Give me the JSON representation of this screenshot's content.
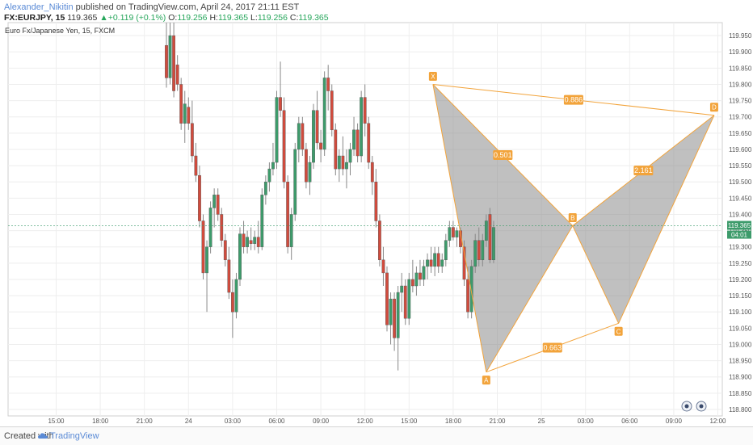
{
  "header": {
    "author": "Alexander_Nikitin",
    "published_text": " published on TradingView.com, April 24, 2017 21:11 EST",
    "symbol": "FX:EURJPY, 15",
    "last": "119.365",
    "change": "▲+0.119 (+0.1%)",
    "o_label": "O:",
    "o_value": "119.256",
    "h_label": "H:",
    "h_value": "119.365",
    "l_label": "L:",
    "l_value": "119.256",
    "c_label": "C:",
    "c_value": "119.365"
  },
  "chart_data": {
    "type": "candlestick",
    "title": "Euro Fx/Japanese Yen, 15, FXCM",
    "ylim": [
      118.78,
      119.99
    ],
    "y_ticks": [
      "118.800",
      "118.850",
      "118.900",
      "118.950",
      "119.000",
      "119.050",
      "119.100",
      "119.150",
      "119.200",
      "119.250",
      "119.300",
      "119.350",
      "119.400",
      "119.450",
      "119.500",
      "119.550",
      "119.600",
      "119.650",
      "119.700",
      "119.750",
      "119.800",
      "119.850",
      "119.900",
      "119.950"
    ],
    "x_tick_labels": [
      "15:00",
      "18:00",
      "21:00",
      "24",
      "03:00",
      "06:00",
      "09:00",
      "12:00",
      "15:00",
      "18:00",
      "21:00",
      "25",
      "03:00",
      "06:00",
      "09:00",
      "12:00"
    ],
    "x_tick_bar_index": [
      -30,
      -18,
      -6,
      6,
      18,
      30,
      42,
      54,
      66,
      78,
      90,
      102,
      114,
      126,
      138,
      150
    ],
    "price_label": "119.365",
    "time_label": "04:01",
    "colors": {
      "up": "#3d9b6b",
      "down": "#d14b3d",
      "pattern_line": "#f2a33a",
      "pattern_fill": "#8c8c8c",
      "label_bg": "#f2a33a"
    },
    "candles": [
      {
        "o": 119.92,
        "h": 119.99,
        "l": 119.79,
        "c": 119.82
      },
      {
        "o": 119.82,
        "h": 119.99,
        "l": 119.8,
        "c": 119.95
      },
      {
        "o": 119.95,
        "h": 119.99,
        "l": 119.76,
        "c": 119.78
      },
      {
        "o": 119.86,
        "h": 119.89,
        "l": 119.78,
        "c": 119.8
      },
      {
        "o": 119.8,
        "h": 119.82,
        "l": 119.66,
        "c": 119.68
      },
      {
        "o": 119.68,
        "h": 119.78,
        "l": 119.62,
        "c": 119.74
      },
      {
        "o": 119.73,
        "h": 119.76,
        "l": 119.66,
        "c": 119.68
      },
      {
        "o": 119.68,
        "h": 119.75,
        "l": 119.56,
        "c": 119.58
      },
      {
        "o": 119.58,
        "h": 119.62,
        "l": 119.5,
        "c": 119.52
      },
      {
        "o": 119.52,
        "h": 119.55,
        "l": 119.36,
        "c": 119.38
      },
      {
        "o": 119.38,
        "h": 119.4,
        "l": 119.2,
        "c": 119.22
      },
      {
        "o": 119.22,
        "h": 119.32,
        "l": 119.1,
        "c": 119.3
      },
      {
        "o": 119.3,
        "h": 119.44,
        "l": 119.28,
        "c": 119.42
      },
      {
        "o": 119.42,
        "h": 119.48,
        "l": 119.36,
        "c": 119.46
      },
      {
        "o": 119.46,
        "h": 119.48,
        "l": 119.38,
        "c": 119.4
      },
      {
        "o": 119.4,
        "h": 119.42,
        "l": 119.3,
        "c": 119.32
      },
      {
        "o": 119.32,
        "h": 119.34,
        "l": 119.24,
        "c": 119.26
      },
      {
        "o": 119.26,
        "h": 119.3,
        "l": 119.14,
        "c": 119.16
      },
      {
        "o": 119.16,
        "h": 119.2,
        "l": 119.02,
        "c": 119.1
      },
      {
        "o": 119.1,
        "h": 119.22,
        "l": 119.08,
        "c": 119.2
      },
      {
        "o": 119.2,
        "h": 119.36,
        "l": 119.18,
        "c": 119.34
      },
      {
        "o": 119.34,
        "h": 119.38,
        "l": 119.28,
        "c": 119.3
      },
      {
        "o": 119.3,
        "h": 119.35,
        "l": 119.28,
        "c": 119.33
      },
      {
        "o": 119.32,
        "h": 119.36,
        "l": 119.29,
        "c": 119.31
      },
      {
        "o": 119.31,
        "h": 119.35,
        "l": 119.29,
        "c": 119.33
      },
      {
        "o": 119.33,
        "h": 119.38,
        "l": 119.28,
        "c": 119.3
      },
      {
        "o": 119.3,
        "h": 119.48,
        "l": 119.29,
        "c": 119.46
      },
      {
        "o": 119.46,
        "h": 119.52,
        "l": 119.43,
        "c": 119.5
      },
      {
        "o": 119.5,
        "h": 119.56,
        "l": 119.47,
        "c": 119.54
      },
      {
        "o": 119.54,
        "h": 119.62,
        "l": 119.52,
        "c": 119.56
      },
      {
        "o": 119.56,
        "h": 119.78,
        "l": 119.54,
        "c": 119.76
      },
      {
        "o": 119.76,
        "h": 119.87,
        "l": 119.7,
        "c": 119.72
      },
      {
        "o": 119.72,
        "h": 119.76,
        "l": 119.48,
        "c": 119.5
      },
      {
        "o": 119.5,
        "h": 119.52,
        "l": 119.28,
        "c": 119.3
      },
      {
        "o": 119.3,
        "h": 119.42,
        "l": 119.26,
        "c": 119.4
      },
      {
        "o": 119.4,
        "h": 119.62,
        "l": 119.38,
        "c": 119.6
      },
      {
        "o": 119.6,
        "h": 119.7,
        "l": 119.56,
        "c": 119.68
      },
      {
        "o": 119.68,
        "h": 119.7,
        "l": 119.58,
        "c": 119.6
      },
      {
        "o": 119.6,
        "h": 119.62,
        "l": 119.48,
        "c": 119.5
      },
      {
        "o": 119.5,
        "h": 119.58,
        "l": 119.46,
        "c": 119.56
      },
      {
        "o": 119.56,
        "h": 119.74,
        "l": 119.54,
        "c": 119.72
      },
      {
        "o": 119.72,
        "h": 119.78,
        "l": 119.6,
        "c": 119.62
      },
      {
        "o": 119.62,
        "h": 119.66,
        "l": 119.56,
        "c": 119.6
      },
      {
        "o": 119.6,
        "h": 119.84,
        "l": 119.58,
        "c": 119.82
      },
      {
        "o": 119.82,
        "h": 119.86,
        "l": 119.72,
        "c": 119.78
      },
      {
        "o": 119.78,
        "h": 119.8,
        "l": 119.64,
        "c": 119.66
      },
      {
        "o": 119.66,
        "h": 119.68,
        "l": 119.52,
        "c": 119.54
      },
      {
        "o": 119.54,
        "h": 119.6,
        "l": 119.5,
        "c": 119.58
      },
      {
        "o": 119.58,
        "h": 119.64,
        "l": 119.52,
        "c": 119.54
      },
      {
        "o": 119.54,
        "h": 119.6,
        "l": 119.48,
        "c": 119.56
      },
      {
        "o": 119.56,
        "h": 119.62,
        "l": 119.52,
        "c": 119.6
      },
      {
        "o": 119.6,
        "h": 119.7,
        "l": 119.58,
        "c": 119.66
      },
      {
        "o": 119.66,
        "h": 119.68,
        "l": 119.56,
        "c": 119.58
      },
      {
        "o": 119.58,
        "h": 119.78,
        "l": 119.56,
        "c": 119.76
      },
      {
        "o": 119.76,
        "h": 119.8,
        "l": 119.64,
        "c": 119.68
      },
      {
        "o": 119.68,
        "h": 119.7,
        "l": 119.54,
        "c": 119.56
      },
      {
        "o": 119.56,
        "h": 119.58,
        "l": 119.46,
        "c": 119.5
      },
      {
        "o": 119.5,
        "h": 119.54,
        "l": 119.36,
        "c": 119.38
      },
      {
        "o": 119.38,
        "h": 119.4,
        "l": 119.24,
        "c": 119.26
      },
      {
        "o": 119.26,
        "h": 119.3,
        "l": 119.18,
        "c": 119.22
      },
      {
        "o": 119.22,
        "h": 119.24,
        "l": 119.04,
        "c": 119.06
      },
      {
        "o": 119.06,
        "h": 119.16,
        "l": 119.0,
        "c": 119.14
      },
      {
        "o": 119.14,
        "h": 119.16,
        "l": 118.98,
        "c": 119.02
      },
      {
        "o": 119.02,
        "h": 119.18,
        "l": 118.92,
        "c": 119.16
      },
      {
        "o": 119.16,
        "h": 119.22,
        "l": 119.1,
        "c": 119.18
      },
      {
        "o": 119.18,
        "h": 119.2,
        "l": 119.06,
        "c": 119.08
      },
      {
        "o": 119.08,
        "h": 119.22,
        "l": 119.06,
        "c": 119.2
      },
      {
        "o": 119.2,
        "h": 119.26,
        "l": 119.16,
        "c": 119.18
      },
      {
        "o": 119.18,
        "h": 119.24,
        "l": 119.15,
        "c": 119.22
      },
      {
        "o": 119.22,
        "h": 119.26,
        "l": 119.18,
        "c": 119.2
      },
      {
        "o": 119.2,
        "h": 119.26,
        "l": 119.18,
        "c": 119.24
      },
      {
        "o": 119.24,
        "h": 119.28,
        "l": 119.2,
        "c": 119.26
      },
      {
        "o": 119.26,
        "h": 119.3,
        "l": 119.22,
        "c": 119.24
      },
      {
        "o": 119.24,
        "h": 119.3,
        "l": 119.21,
        "c": 119.28
      },
      {
        "o": 119.28,
        "h": 119.3,
        "l": 119.22,
        "c": 119.24
      },
      {
        "o": 119.24,
        "h": 119.28,
        "l": 119.22,
        "c": 119.26
      },
      {
        "o": 119.26,
        "h": 119.34,
        "l": 119.24,
        "c": 119.32
      },
      {
        "o": 119.32,
        "h": 119.38,
        "l": 119.3,
        "c": 119.36
      },
      {
        "o": 119.36,
        "h": 119.38,
        "l": 119.32,
        "c": 119.33
      },
      {
        "o": 119.33,
        "h": 119.36,
        "l": 119.3,
        "c": 119.35
      },
      {
        "o": 119.35,
        "h": 119.36,
        "l": 119.28,
        "c": 119.3
      },
      {
        "o": 119.3,
        "h": 119.32,
        "l": 119.18,
        "c": 119.2
      },
      {
        "o": 119.2,
        "h": 119.24,
        "l": 119.08,
        "c": 119.1
      },
      {
        "o": 119.1,
        "h": 119.26,
        "l": 119.08,
        "c": 119.24
      },
      {
        "o": 119.24,
        "h": 119.34,
        "l": 119.22,
        "c": 119.32
      },
      {
        "o": 119.32,
        "h": 119.36,
        "l": 119.24,
        "c": 119.26
      },
      {
        "o": 119.26,
        "h": 119.34,
        "l": 119.24,
        "c": 119.32
      },
      {
        "o": 119.32,
        "h": 119.4,
        "l": 119.3,
        "c": 119.38
      },
      {
        "o": 119.4,
        "h": 119.42,
        "l": 119.25,
        "c": 119.26
      },
      {
        "o": 119.26,
        "h": 119.38,
        "l": 119.25,
        "c": 119.36
      }
    ],
    "pattern": {
      "points": [
        {
          "label": "X",
          "bar": 72.5,
          "price": 119.8
        },
        {
          "label": "A",
          "bar": 87,
          "price": 118.915
        },
        {
          "label": "B",
          "bar": 110.5,
          "price": 119.365
        },
        {
          "label": "C",
          "bar": 123,
          "price": 119.065
        },
        {
          "label": "D",
          "bar": 149,
          "price": 119.705
        }
      ],
      "ratios": [
        {
          "text": "0.886",
          "from": "X",
          "to": "D"
        },
        {
          "text": "0.501",
          "from": "X",
          "to": "B"
        },
        {
          "text": "0.663",
          "from": "A",
          "to": "C"
        },
        {
          "text": "2.161",
          "from": "B",
          "to": "D"
        }
      ]
    }
  },
  "footer": {
    "created": "Created with",
    "brand": "TradingView"
  }
}
